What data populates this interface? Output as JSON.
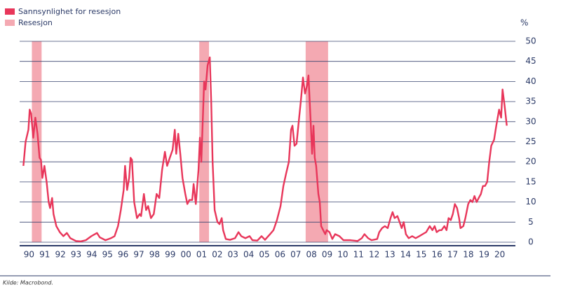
{
  "chart_data": {
    "type": "line",
    "series": [
      {
        "name": "Sannsynlighet for resesjon",
        "color": "#e8365a",
        "values": [
          19,
          25,
          28,
          33,
          32,
          26,
          31,
          27,
          21,
          20.5,
          16,
          19,
          15,
          10,
          8.5,
          11,
          7,
          4,
          2.5,
          1.5,
          2.3,
          1,
          0.3,
          0.2,
          0.5,
          1.5,
          2.3,
          1.2,
          0.5,
          1,
          1.5,
          4,
          8,
          13,
          19,
          13,
          16,
          21,
          20.5,
          10,
          6,
          7,
          6.5,
          12,
          8,
          9,
          6,
          7,
          12,
          11,
          18,
          22.5,
          19,
          21,
          23,
          28,
          22,
          27,
          22,
          16,
          12,
          9.5,
          10.5,
          10.5,
          14.5,
          9.5,
          18,
          26,
          20,
          30,
          40,
          38,
          44,
          46,
          35,
          20,
          8,
          5,
          4.5,
          6,
          3,
          0.8,
          0.6,
          1,
          2.5,
          1.5,
          1,
          1.5,
          0.5,
          0.4,
          1.5,
          0.6,
          2,
          3,
          5.5,
          9,
          14,
          17,
          20,
          28,
          29,
          24,
          24.5,
          30,
          35,
          41,
          37,
          39,
          41.5,
          30,
          22,
          29,
          21,
          19,
          12,
          10,
          4,
          3,
          2,
          3,
          2.5,
          0.8,
          2,
          1.5,
          0.5,
          0.5,
          0.3,
          1,
          2,
          1,
          0.5,
          0.8,
          2.5,
          3.5,
          4,
          3.5,
          6,
          7.5,
          6,
          6.5,
          5,
          3.5,
          5,
          2,
          1,
          1.5,
          1,
          1.5,
          2,
          2.5,
          4,
          3,
          4,
          2.5,
          3,
          3,
          4,
          3,
          6,
          5.5,
          7,
          9.5,
          8.5,
          6,
          3.5,
          4,
          6,
          9.5,
          10.5,
          10,
          11.5,
          10,
          11,
          12,
          14,
          14,
          15,
          20,
          24,
          25.5,
          29,
          33,
          31,
          38,
          34,
          29
        ]
      }
    ],
    "x": [
      1990.14,
      1990.28,
      1990.46,
      1990.54,
      1990.63,
      1990.77,
      1990.9,
      1991.04,
      1991.17,
      1991.26,
      1991.35,
      1991.48,
      1991.62,
      1991.75,
      1991.84,
      1991.97,
      1992.06,
      1992.24,
      1992.46,
      1992.69,
      1992.91,
      1993.13,
      1993.49,
      1993.8,
      1994.12,
      1994.47,
      1994.83,
      1995.01,
      1995.37,
      1995.72,
      1995.95,
      1996.17,
      1996.35,
      1996.53,
      1996.62,
      1996.75,
      1996.88,
      1996.97,
      1997.06,
      1997.2,
      1997.38,
      1997.55,
      1997.64,
      1997.82,
      1997.96,
      1998.09,
      1998.27,
      1998.45,
      1998.63,
      1998.8,
      1998.98,
      1999.16,
      1999.3,
      1999.47,
      1999.65,
      1999.79,
      1999.88,
      2000.01,
      2000.14,
      2000.28,
      2000.46,
      2000.59,
      2000.72,
      2000.9,
      2000.99,
      2001.13,
      2001.3,
      2001.39,
      2001.48,
      2001.57,
      2001.66,
      2001.75,
      2001.88,
      2002.02,
      2002.11,
      2002.2,
      2002.33,
      2002.51,
      2002.64,
      2002.78,
      2002.87,
      2003.04,
      2003.31,
      2003.63,
      2003.85,
      2004.03,
      2004.29,
      2004.56,
      2004.74,
      2005.05,
      2005.32,
      2005.54,
      2005.86,
      2006.08,
      2006.3,
      2006.53,
      2006.71,
      2006.88,
      2007.06,
      2007.2,
      2007.29,
      2007.42,
      2007.55,
      2007.69,
      2007.82,
      2007.96,
      2008.09,
      2008.22,
      2008.31,
      2008.45,
      2008.54,
      2008.63,
      2008.71,
      2008.8,
      2008.94,
      2009.03,
      2009.12,
      2009.25,
      2009.38,
      2009.47,
      2009.65,
      2009.83,
      2010.01,
      2010.28,
      2010.54,
      2010.99,
      2011.44,
      2011.71,
      2011.88,
      2012.11,
      2012.33,
      2012.69,
      2012.82,
      2013.0,
      2013.18,
      2013.36,
      2013.54,
      2013.67,
      2013.8,
      2013.98,
      2014.12,
      2014.25,
      2014.38,
      2014.52,
      2014.7,
      2014.92,
      2015.14,
      2015.37,
      2015.59,
      2015.81,
      2016.04,
      2016.21,
      2016.35,
      2016.48,
      2016.66,
      2016.79,
      2016.97,
      2017.11,
      2017.24,
      2017.38,
      2017.51,
      2017.64,
      2017.78,
      2017.91,
      2018.0,
      2018.18,
      2018.31,
      2018.49,
      2018.63,
      2018.76,
      2018.89,
      2019.03,
      2019.16,
      2019.3,
      2019.43,
      2019.56,
      2019.7,
      2019.83,
      2019.96,
      2020.14,
      2020.28,
      2020.46,
      2020.59,
      2020.68,
      2020.81,
      2020.95
    ],
    "recessions": {
      "name": "Resesjon",
      "color": "#f4a9b2",
      "periods": [
        [
          1990.68,
          1991.3
        ],
        [
          2001.35,
          2001.97
        ],
        [
          2008.13,
          2009.56
        ]
      ]
    },
    "y_unit": "%",
    "xlim": [
      1989.9,
      2021.5
    ],
    "xticks": [
      {
        "value": 1990.5,
        "label": "90"
      },
      {
        "value": 1991.5,
        "label": "91"
      },
      {
        "value": 1992.5,
        "label": "92"
      },
      {
        "value": 1993.5,
        "label": "93"
      },
      {
        "value": 1994.5,
        "label": "94"
      },
      {
        "value": 1995.5,
        "label": "95"
      },
      {
        "value": 1996.5,
        "label": "96"
      },
      {
        "value": 1997.5,
        "label": "97"
      },
      {
        "value": 1998.5,
        "label": "98"
      },
      {
        "value": 1999.5,
        "label": "99"
      },
      {
        "value": 2000.5,
        "label": "00"
      },
      {
        "value": 2001.5,
        "label": "01"
      },
      {
        "value": 2002.5,
        "label": "02"
      },
      {
        "value": 2003.5,
        "label": "03"
      },
      {
        "value": 2004.5,
        "label": "04"
      },
      {
        "value": 2005.5,
        "label": "05"
      },
      {
        "value": 2006.5,
        "label": "06"
      },
      {
        "value": 2007.5,
        "label": "07"
      },
      {
        "value": 2008.5,
        "label": "08"
      },
      {
        "value": 2009.5,
        "label": "09"
      },
      {
        "value": 2010.5,
        "label": "10"
      },
      {
        "value": 2011.5,
        "label": "11"
      },
      {
        "value": 2012.5,
        "label": "12"
      },
      {
        "value": 2013.5,
        "label": "13"
      },
      {
        "value": 2014.5,
        "label": "14"
      },
      {
        "value": 2015.5,
        "label": "15"
      },
      {
        "value": 2016.5,
        "label": "16"
      },
      {
        "value": 2017.5,
        "label": "17"
      },
      {
        "value": 2018.5,
        "label": "18"
      },
      {
        "value": 2019.5,
        "label": "19"
      },
      {
        "value": 2020.5,
        "label": "20"
      }
    ],
    "ylim": [
      0,
      50
    ],
    "yticks": [
      0,
      5,
      10,
      15,
      20,
      25,
      30,
      35,
      40,
      45,
      50
    ],
    "grid": true,
    "source": "Kilde: Macrobond."
  }
}
